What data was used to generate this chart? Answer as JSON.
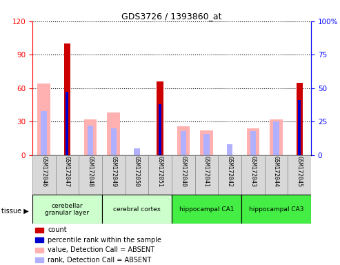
{
  "title": "GDS3726 / 1393860_at",
  "samples": [
    "GSM172046",
    "GSM172047",
    "GSM172048",
    "GSM172049",
    "GSM172050",
    "GSM172051",
    "GSM172040",
    "GSM172041",
    "GSM172042",
    "GSM172043",
    "GSM172044",
    "GSM172045"
  ],
  "count": [
    0,
    100,
    0,
    0,
    0,
    66,
    0,
    0,
    0,
    0,
    0,
    65
  ],
  "percentile_rank": [
    0,
    47,
    0,
    0,
    0,
    38,
    0,
    0,
    0,
    0,
    0,
    41
  ],
  "value_absent": [
    64,
    0,
    32,
    38,
    0,
    0,
    26,
    22,
    0,
    24,
    32,
    0
  ],
  "rank_absent": [
    33,
    0,
    22,
    20,
    5,
    0,
    18,
    16,
    8,
    18,
    25,
    0
  ],
  "ylim_left": [
    0,
    120
  ],
  "ylim_right": [
    0,
    100
  ],
  "yticks_left": [
    0,
    30,
    60,
    90,
    120
  ],
  "yticks_right": [
    0,
    25,
    50,
    75,
    100
  ],
  "ytick_labels_left": [
    "0",
    "30",
    "60",
    "90",
    "120"
  ],
  "ytick_labels_right": [
    "0",
    "25",
    "50",
    "75",
    "100%"
  ],
  "tissue_groups": [
    {
      "label": "cerebellar\ngranular layer",
      "start": 0,
      "end": 3,
      "color": "#ccffcc"
    },
    {
      "label": "cerebral cortex",
      "start": 3,
      "end": 6,
      "color": "#ccffcc"
    },
    {
      "label": "hippocampal CA1",
      "start": 6,
      "end": 9,
      "color": "#44ee44"
    },
    {
      "label": "hippocampal CA3",
      "start": 9,
      "end": 12,
      "color": "#44ee44"
    }
  ],
  "color_count": "#cc0000",
  "color_rank": "#0000cc",
  "color_value_absent": "#ffb0b0",
  "color_rank_absent": "#b0b0ff",
  "legend_items": [
    {
      "color": "#cc0000",
      "label": "count"
    },
    {
      "color": "#0000cc",
      "label": "percentile rank within the sample"
    },
    {
      "color": "#ffb0b0",
      "label": "value, Detection Call = ABSENT"
    },
    {
      "color": "#b0b0ff",
      "label": "rank, Detection Call = ABSENT"
    }
  ]
}
